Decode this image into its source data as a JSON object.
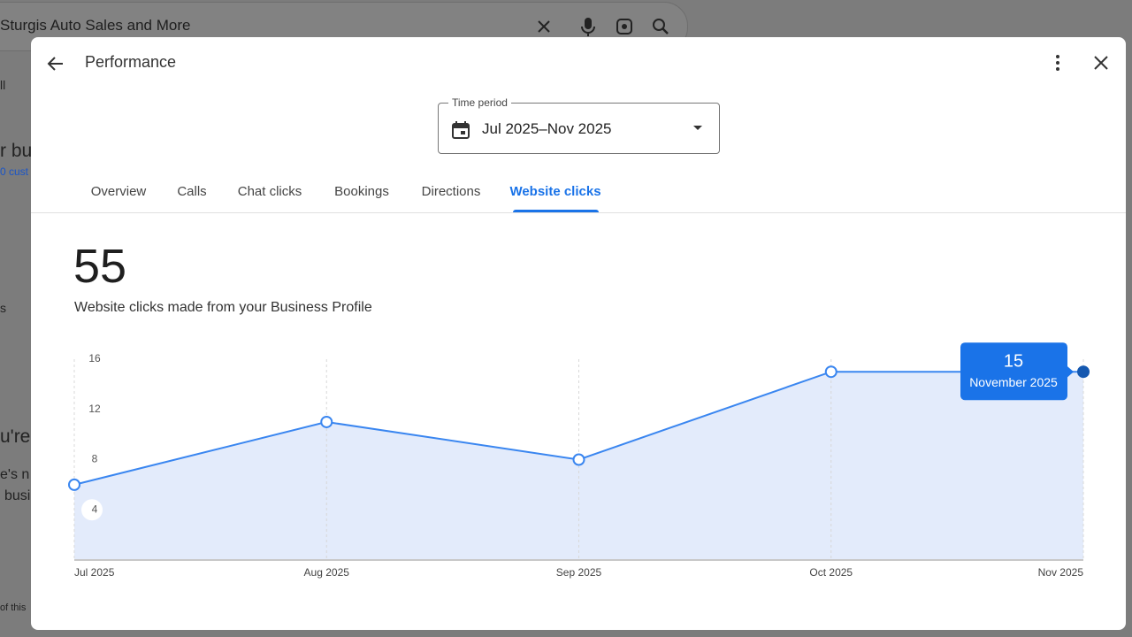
{
  "background": {
    "search_query": "Sturgis Auto Sales and More",
    "fragments": [
      "ll",
      "r bu",
      "0 cust",
      "s",
      "u're",
      "e's n",
      "busi",
      "of this"
    ]
  },
  "dialog": {
    "title": "Performance",
    "time_period_label": "Time period",
    "time_period_value": "Jul 2025–Nov 2025",
    "tabs": [
      "Overview",
      "Calls",
      "Chat clicks",
      "Bookings",
      "Directions",
      "Website clicks"
    ],
    "active_tab": 5,
    "metric_total": 55,
    "metric_description": "Website clicks made from your Business Profile"
  },
  "chart_data": {
    "type": "area",
    "categories": [
      "Jul 2025",
      "Aug 2025",
      "Sep 2025",
      "Oct 2025",
      "Nov 2025"
    ],
    "values": [
      6,
      11,
      8,
      15,
      15
    ],
    "color": "#3a86f0",
    "fill_color": "#e3ebfb",
    "highlight_color": "#1558b0",
    "ylim": [
      0,
      16
    ],
    "yticks": [
      4,
      8,
      12,
      16
    ],
    "x_grid": true,
    "highlight_index": 4,
    "tooltip_label": "November 2025"
  }
}
